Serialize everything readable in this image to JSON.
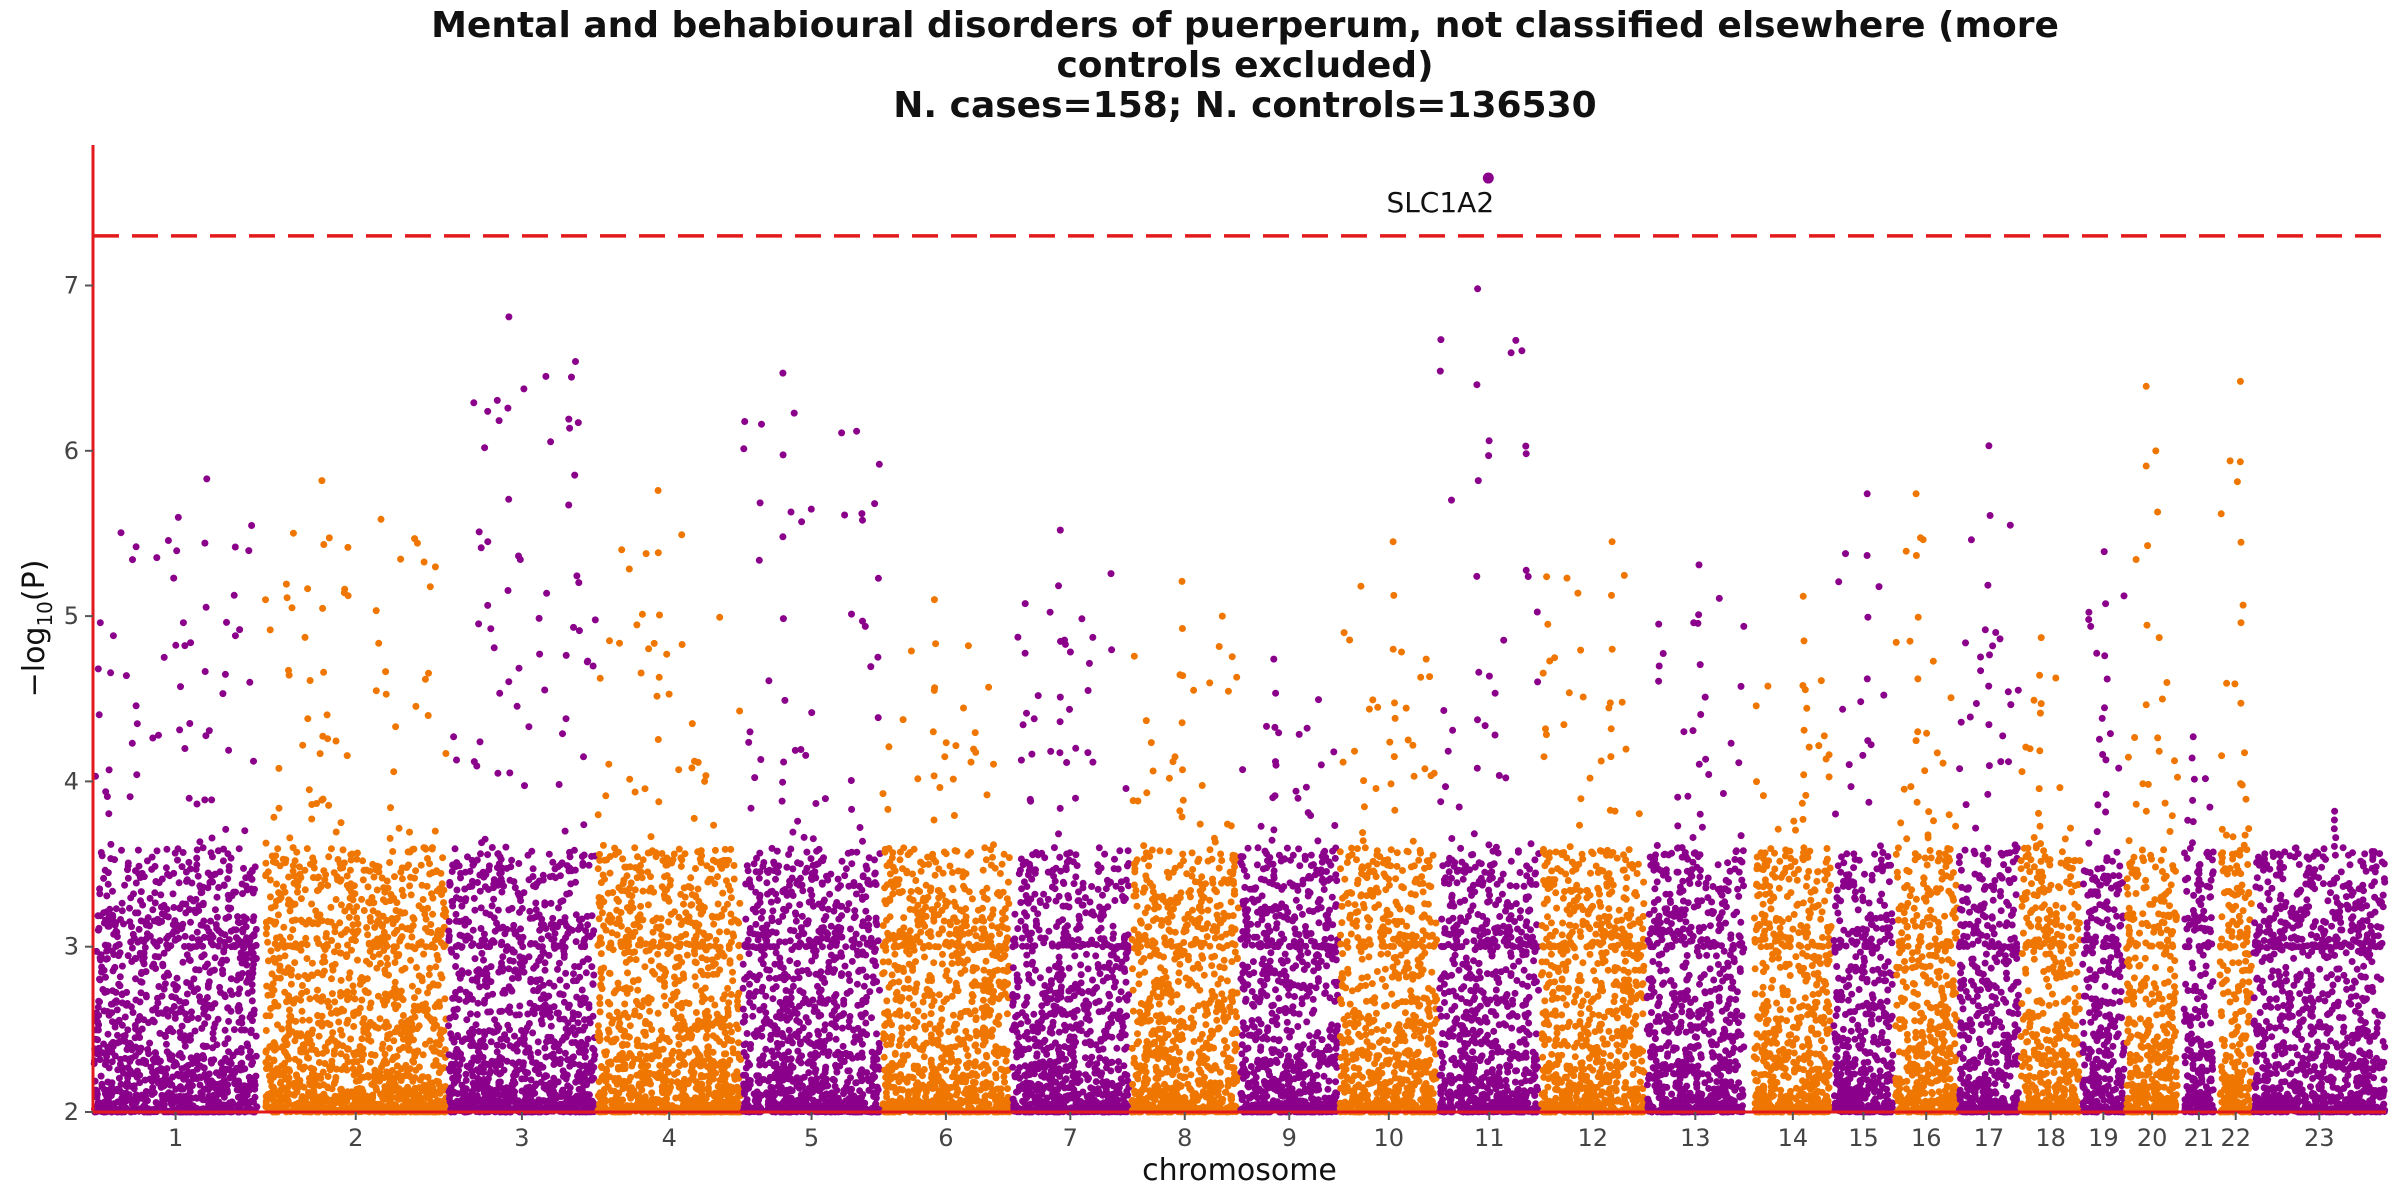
{
  "chart_data": {
    "type": "scatter",
    "title_lines": [
      "Mental and behabioural disorders of puerperum, not classified elsewhere (more",
      "controls excluded)",
      "N. cases=158; N. controls=136530"
    ],
    "xlabel": "chromosome",
    "ylabel_main": "−log",
    "ylabel_sub": "10",
    "ylabel_arg": "(P)",
    "ylim": [
      2,
      7.85
    ],
    "yticks": [
      2,
      3,
      4,
      5,
      6,
      7
    ],
    "significance_line": 7.3,
    "grid": false,
    "legend": "none",
    "colors": {
      "odd": "#8b008b",
      "even": "#ef7600",
      "threshold": "#e31a1c",
      "axis": "#e31a1c"
    },
    "chromosomes": [
      {
        "label": "1",
        "span": [
          0,
          83
        ],
        "peak": 5.83
      },
      {
        "label": "2",
        "span": [
          86,
          178
        ],
        "peak": 5.82
      },
      {
        "label": "3",
        "span": [
          178,
          253
        ],
        "peak": 6.81
      },
      {
        "label": "4",
        "span": [
          253,
          326
        ],
        "peak": 5.76
      },
      {
        "label": "5",
        "span": [
          326,
          396
        ],
        "peak": 6.47
      },
      {
        "label": "6",
        "span": [
          396,
          461
        ],
        "peak": 5.1
      },
      {
        "label": "7",
        "span": [
          461,
          521
        ],
        "peak": 5.52
      },
      {
        "label": "8",
        "span": [
          521,
          576
        ],
        "peak": 5.21
      },
      {
        "label": "9",
        "span": [
          576,
          626
        ],
        "peak": 4.74
      },
      {
        "label": "10",
        "span": [
          626,
          676
        ],
        "peak": 5.45
      },
      {
        "label": "11",
        "span": [
          676,
          727
        ],
        "peak": 6.98
      },
      {
        "label": "12",
        "span": [
          727,
          780
        ],
        "peak": 5.45
      },
      {
        "label": "13",
        "span": [
          780,
          830
        ],
        "peak": 5.31
      },
      {
        "label": "14",
        "span": [
          834,
          874
        ],
        "peak": 5.12
      },
      {
        "label": "15",
        "span": [
          874,
          905
        ],
        "peak": 5.74
      },
      {
        "label": "16",
        "span": [
          905,
          937
        ],
        "peak": 5.74
      },
      {
        "label": "17",
        "span": [
          937,
          968
        ],
        "peak": 6.03
      },
      {
        "label": "18",
        "span": [
          968,
          999
        ],
        "peak": 4.87
      },
      {
        "label": "19",
        "span": [
          999,
          1021
        ],
        "peak": 5.39
      },
      {
        "label": "20",
        "span": [
          1021,
          1048
        ],
        "peak": 6.39
      },
      {
        "label": "21",
        "span": [
          1050,
          1066
        ],
        "peak": 4.27
      },
      {
        "label": "22",
        "span": [
          1068,
          1085
        ],
        "peak": 6.42
      },
      {
        "label": "23",
        "span": [
          1085,
          1152
        ],
        "peak": 3.82
      }
    ],
    "highlight": {
      "label": "SLC1A2",
      "chromosome": "11",
      "x": 701,
      "y": 7.65
    }
  }
}
